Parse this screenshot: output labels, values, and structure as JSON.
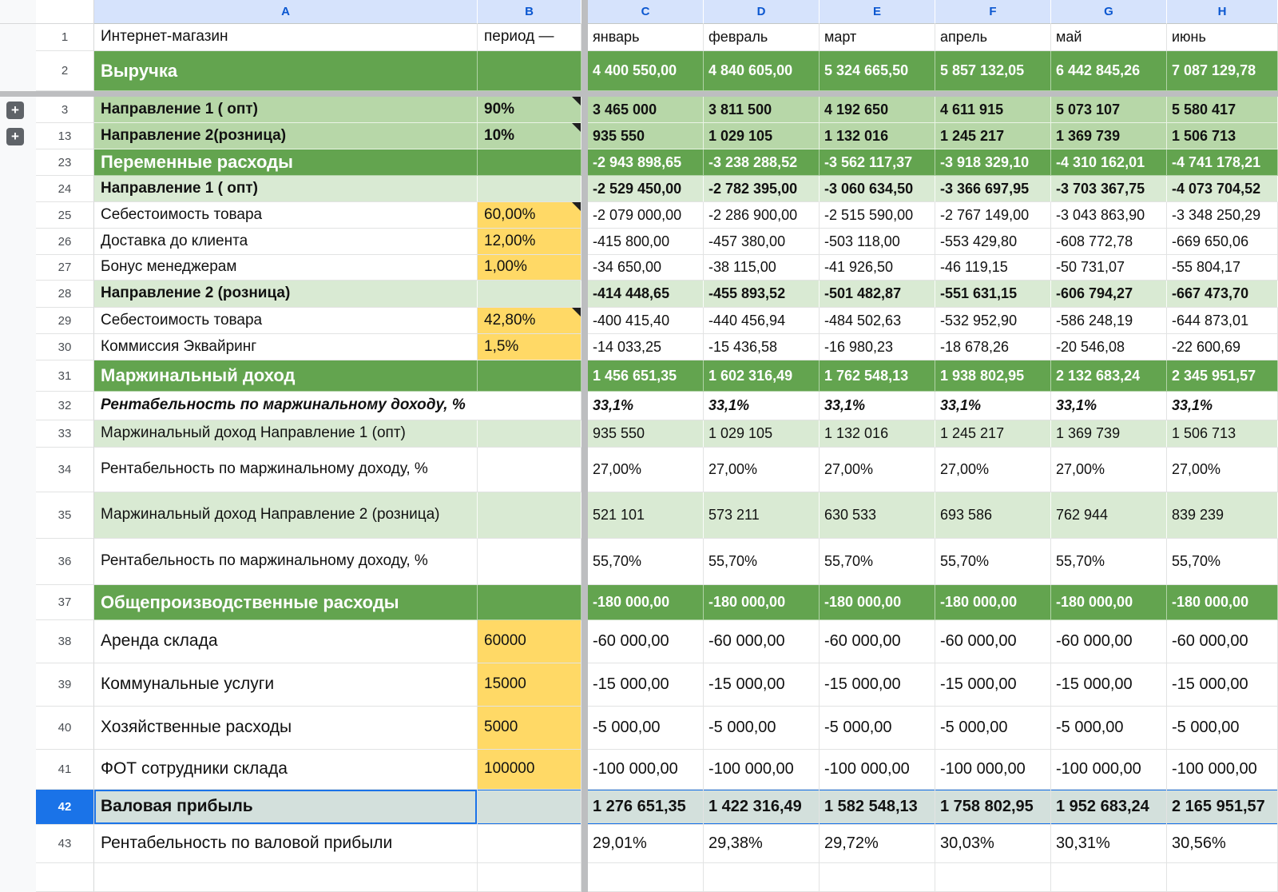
{
  "colors": {
    "section_green": "#63a44f",
    "mid_green": "#b7d7a8",
    "pale_green": "#d9ead3",
    "input_yellow": "#ffd966",
    "gross_row_teal": "#d3e0dc",
    "selection_blue": "#1a73e8",
    "column_header_bg": "#d6e3fc",
    "column_header_text": "#0b57d0",
    "frozen_divider_gray": "#bdbec0"
  },
  "sheet": {
    "column_headers": [
      "A",
      "B",
      "C",
      "D",
      "E",
      "F",
      "G",
      "H"
    ],
    "group_buttons": [
      {
        "target_row": "3",
        "label": "+"
      },
      {
        "target_row": "13",
        "label": "+"
      }
    ],
    "rows": [
      {
        "num": "1",
        "kind": "plain",
        "a": "Интернет-магазин",
        "b": "период —",
        "bKind": "",
        "bNote": false,
        "values": [
          "январь",
          "февраль",
          "март",
          "апрель",
          "май",
          "июнь"
        ]
      },
      {
        "num": "2",
        "kind": "section",
        "a": "Выручка",
        "b": "",
        "bKind": "",
        "bNote": false,
        "values": [
          "4 400 550,00",
          "4 840 605,00",
          "5 324 665,50",
          "5 857 132,05",
          "6 442 845,26",
          "7 087 129,78"
        ]
      },
      {
        "num": "3",
        "kind": "mid",
        "a": "Направление 1 ( опт)",
        "b": "90%",
        "bKind": "",
        "bNote": true,
        "values": [
          "3 465 000",
          "3 811 500",
          "4 192 650",
          "4 611 915",
          "5 073 107",
          "5 580 417"
        ]
      },
      {
        "num": "13",
        "kind": "mid",
        "a": "Направление 2(розница)",
        "b": "10%",
        "bKind": "",
        "bNote": true,
        "values": [
          "935 550",
          "1 029 105",
          "1 132 016",
          "1 245 217",
          "1 369 739",
          "1 506 713"
        ]
      },
      {
        "num": "23",
        "kind": "section",
        "a": "Переменные расходы",
        "b": "",
        "bKind": "",
        "bNote": false,
        "values": [
          "-2 943 898,65",
          "-3 238 288,52",
          "-3 562 117,37",
          "-3 918 329,10",
          "-4 310 162,01",
          "-4 741 178,21"
        ]
      },
      {
        "num": "24",
        "kind": "paleBold",
        "a": "Направление 1 ( опт)",
        "b": "",
        "bKind": "",
        "bNote": false,
        "values": [
          "-2 529 450,00",
          "-2 782 395,00",
          "-3 060 634,50",
          "-3 366 697,95",
          "-3 703 367,75",
          "-4 073 704,52"
        ]
      },
      {
        "num": "25",
        "kind": "plain",
        "a": "Себестоимость товара",
        "b": "60,00%",
        "bKind": "yellow",
        "bNote": true,
        "values": [
          "-2 079 000,00",
          "-2 286 900,00",
          "-2 515 590,00",
          "-2 767 149,00",
          "-3 043 863,90",
          "-3 348 250,29"
        ]
      },
      {
        "num": "26",
        "kind": "plain",
        "a": "Доставка до клиента",
        "b": "12,00%",
        "bKind": "yellow",
        "bNote": false,
        "values": [
          "-415 800,00",
          "-457 380,00",
          "-503 118,00",
          "-553 429,80",
          "-608 772,78",
          "-669 650,06"
        ]
      },
      {
        "num": "27",
        "kind": "plain",
        "a": "Бонус менеджерам",
        "b": "1,00%",
        "bKind": "yellow",
        "bNote": false,
        "values": [
          "-34 650,00",
          "-38 115,00",
          "-41 926,50",
          "-46 119,15",
          "-50 731,07",
          "-55 804,17"
        ]
      },
      {
        "num": "28",
        "kind": "paleBold",
        "a": "Направление 2 (розница)",
        "b": "",
        "bKind": "",
        "bNote": false,
        "values": [
          "-414 448,65",
          "-455 893,52",
          "-501 482,87",
          "-551 631,15",
          "-606 794,27",
          "-667 473,70"
        ]
      },
      {
        "num": "29",
        "kind": "plain",
        "a": "Себестоимость товара",
        "b": "42,80%",
        "bKind": "yellow",
        "bNote": true,
        "values": [
          "-400 415,40",
          "-440 456,94",
          "-484 502,63",
          "-532 952,90",
          "-586 248,19",
          "-644 873,01"
        ]
      },
      {
        "num": "30",
        "kind": "plain",
        "a": "Коммиссия Эквайринг",
        "b": "1,5%",
        "bKind": "yellow",
        "bNote": false,
        "values": [
          "-14 033,25",
          "-15 436,58",
          "-16 980,23",
          "-18 678,26",
          "-20 546,08",
          "-22 600,69"
        ]
      },
      {
        "num": "31",
        "kind": "section",
        "a": "Маржинальный доход",
        "b": "",
        "bKind": "",
        "bNote": false,
        "values": [
          "1 456 651,35",
          "1 602 316,49",
          "1 762 548,13",
          "1 938 802,95",
          "2 132 683,24",
          "2 345 951,57"
        ]
      },
      {
        "num": "32",
        "kind": "italic",
        "abSpan": true,
        "a": "Рентабельность по маржинальному доходу, %",
        "b": "",
        "bKind": "",
        "bNote": false,
        "values": [
          "33,1%",
          "33,1%",
          "33,1%",
          "33,1%",
          "33,1%",
          "33,1%"
        ]
      },
      {
        "num": "33",
        "kind": "pale",
        "a": "Маржинальный доход Направление 1 (опт)",
        "b": "",
        "bKind": "",
        "bNote": false,
        "values": [
          "935 550",
          "1 029 105",
          "1 132 016",
          "1 245 217",
          "1 369 739",
          "1 506 713"
        ]
      },
      {
        "num": "34",
        "kind": "plain",
        "a": "Рентабельность по маржинальному доходу, %",
        "b": "",
        "bKind": "",
        "bNote": false,
        "values": [
          "27,00%",
          "27,00%",
          "27,00%",
          "27,00%",
          "27,00%",
          "27,00%"
        ]
      },
      {
        "num": "35",
        "kind": "pale",
        "a": "Маржинальный доход Направление 2 (розница)",
        "b": "",
        "bKind": "",
        "bNote": false,
        "values": [
          "521 101",
          "573 211",
          "630 533",
          "693 586",
          "762 944",
          "839 239"
        ]
      },
      {
        "num": "36",
        "kind": "plain",
        "a": "Рентабельность по маржинальному доходу, %",
        "b": "",
        "bKind": "",
        "bNote": false,
        "values": [
          "55,70%",
          "55,70%",
          "55,70%",
          "55,70%",
          "55,70%",
          "55,70%"
        ]
      },
      {
        "num": "37",
        "kind": "section",
        "a": "Общепроизводственные расходы",
        "b": "",
        "bKind": "",
        "bNote": false,
        "values": [
          "-180 000,00",
          "-180 000,00",
          "-180 000,00",
          "-180 000,00",
          "-180 000,00",
          "-180 000,00"
        ]
      },
      {
        "num": "38",
        "kind": "plain",
        "big": true,
        "a": "Аренда склада",
        "b": "60000",
        "bKind": "yellow",
        "bNote": false,
        "values": [
          "-60 000,00",
          "-60 000,00",
          "-60 000,00",
          "-60 000,00",
          "-60 000,00",
          "-60 000,00"
        ]
      },
      {
        "num": "39",
        "kind": "plain",
        "big": true,
        "a": "Коммунальные услуги",
        "b": "15000",
        "bKind": "yellow",
        "bNote": false,
        "values": [
          "-15 000,00",
          "-15 000,00",
          "-15 000,00",
          "-15 000,00",
          "-15 000,00",
          "-15 000,00"
        ]
      },
      {
        "num": "40",
        "kind": "plain",
        "big": true,
        "a": "Хозяйственные расходы",
        "b": "5000",
        "bKind": "yellow",
        "bNote": false,
        "values": [
          "-5 000,00",
          "-5 000,00",
          "-5 000,00",
          "-5 000,00",
          "-5 000,00",
          "-5 000,00"
        ]
      },
      {
        "num": "41",
        "kind": "plain",
        "big": true,
        "a": "ФОТ сотрудники склада",
        "b": "100000",
        "bKind": "yellow",
        "bNote": false,
        "values": [
          "-100 000,00",
          "-100 000,00",
          "-100 000,00",
          "-100 000,00",
          "-100 000,00",
          "-100 000,00"
        ]
      },
      {
        "num": "42",
        "kind": "gross",
        "big": true,
        "selected": true,
        "a": "Валовая прибыль",
        "b": "",
        "bKind": "",
        "bNote": false,
        "values": [
          "1 276 651,35",
          "1 422 316,49",
          "1 582 548,13",
          "1 758 802,95",
          "1 952 683,24",
          "2 165 951,57"
        ]
      },
      {
        "num": "43",
        "kind": "plain",
        "big": true,
        "a": "Рентабельность по валовой прибыли",
        "b": "",
        "bKind": "",
        "bNote": false,
        "values": [
          "29,01%",
          "29,38%",
          "29,72%",
          "30,03%",
          "30,31%",
          "30,56%"
        ]
      },
      {
        "num": "",
        "kind": "empty",
        "a": "",
        "b": "",
        "bKind": "",
        "bNote": false,
        "values": [
          "",
          "",
          "",
          "",
          "",
          ""
        ]
      }
    ]
  }
}
